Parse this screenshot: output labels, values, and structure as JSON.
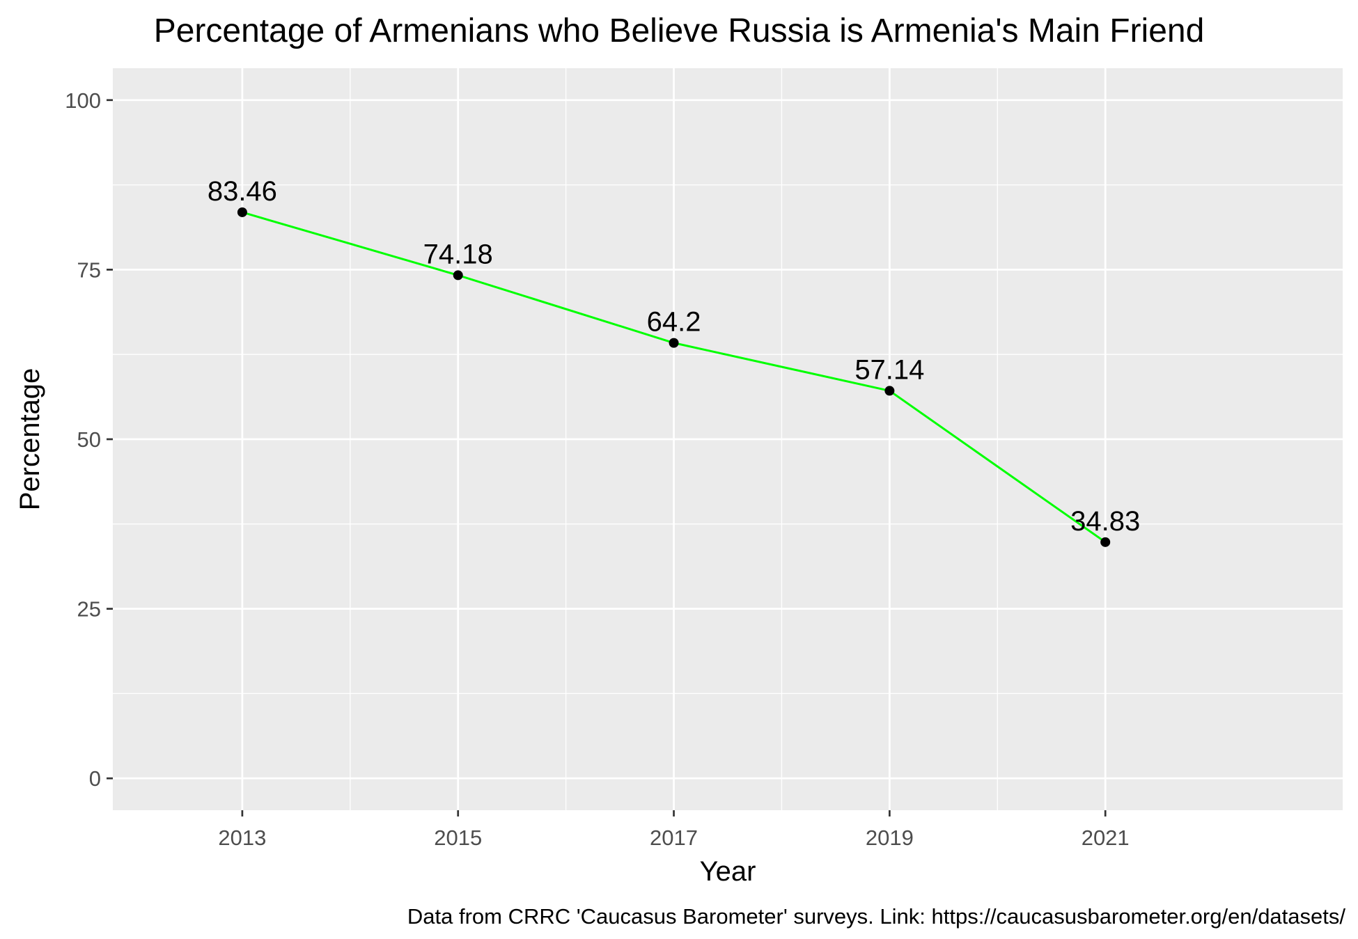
{
  "chart_data": {
    "type": "line",
    "title": "Percentage of Armenians who Believe Russia is Armenia's Main Friend",
    "xlabel": "Year",
    "ylabel": "Percentage",
    "caption": "Data from CRRC 'Caucasus Barometer' surveys. Link: https://caucasusbarometer.org/en/datasets/",
    "x": [
      2013,
      2015,
      2017,
      2019,
      2021
    ],
    "values": [
      83.46,
      74.18,
      64.2,
      57.14,
      34.83
    ],
    "data_labels": [
      "83.46",
      "74.18",
      "64.2",
      "57.14",
      "34.83"
    ],
    "xlim": [
      2011.8,
      2023.2
    ],
    "ylim": [
      -4.7,
      104.7
    ],
    "x_ticks": [
      2013,
      2015,
      2017,
      2019,
      2021
    ],
    "x_tick_labels": [
      "2013",
      "2015",
      "2017",
      "2019",
      "2021"
    ],
    "y_ticks": [
      0,
      25,
      50,
      75,
      100
    ],
    "y_tick_labels": [
      "0",
      "25",
      "50",
      "75",
      "100"
    ],
    "y_minor_ticks": [
      12.5,
      37.5,
      62.5,
      87.5
    ],
    "grid": true,
    "legend": "none",
    "colors": {
      "line": "#00ff00",
      "point": "#000000",
      "panel": "#ebebeb",
      "grid": "#ffffff"
    }
  }
}
